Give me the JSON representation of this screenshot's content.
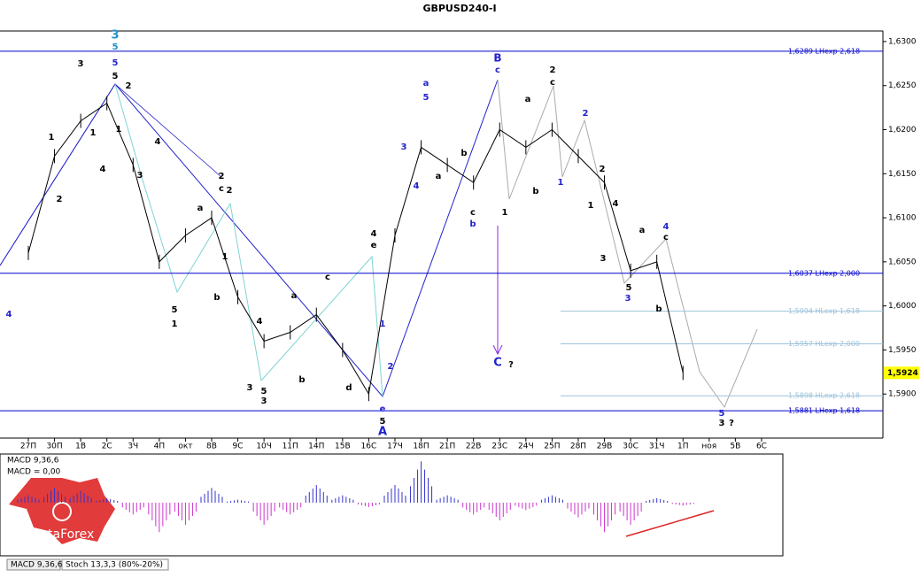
{
  "chart_data": {
    "type": "line",
    "title": "GBPUSD240-I",
    "categories": [
      "27П",
      "30П",
      "1В",
      "2С",
      "3Ч",
      "4П",
      "окт",
      "8В",
      "9С",
      "10Ч",
      "11П",
      "14П",
      "15В",
      "16С",
      "17Ч",
      "18П",
      "21П",
      "22В",
      "23С",
      "24Ч",
      "25П",
      "28П",
      "29В",
      "30С",
      "31Ч",
      "1П",
      "ноя",
      "5В",
      "6С"
    ],
    "series": [
      {
        "name": "GBPUSD",
        "color": "#000000",
        "values": [
          1.606,
          1.617,
          1.621,
          1.623,
          1.616,
          1.605,
          1.608,
          1.61,
          1.601,
          1.596,
          1.597,
          1.599,
          1.595,
          1.59,
          1.608,
          1.618,
          1.616,
          1.614,
          1.62,
          1.618,
          1.62,
          1.617,
          1.614,
          1.604,
          1.605,
          1.5924,
          null,
          null,
          null
        ]
      }
    ],
    "ylim": [
      1.585,
      1.6312
    ],
    "yticks": [
      {
        "value": 1.59,
        "label": "1,5900"
      },
      {
        "value": 1.595,
        "label": "1,5950"
      },
      {
        "value": 1.6,
        "label": "1,6000"
      },
      {
        "value": 1.605,
        "label": "1,6050"
      },
      {
        "value": 1.61,
        "label": "1,6100"
      },
      {
        "value": 1.615,
        "label": "1,6150"
      },
      {
        "value": 1.62,
        "label": "1,6200"
      },
      {
        "value": 1.625,
        "label": "1,6250"
      },
      {
        "value": 1.63,
        "label": "1,6300"
      }
    ],
    "levels": [
      {
        "value": 1.6289,
        "label": "1,6289 LHexp 2,618",
        "color": "#0000cc"
      },
      {
        "value": 1.6037,
        "label": "1,6037 LHexp 2,000",
        "color": "#0000cc"
      },
      {
        "value": 1.5994,
        "label": "1,5994 HLexp 1,618",
        "color": "#9ec3dc"
      },
      {
        "value": 1.5957,
        "label": "1,5957 HLexp 2,000",
        "color": "#9ec3dc"
      },
      {
        "value": 1.5898,
        "label": "1,5898 HLexp 2,618",
        "color": "#9ec3dc"
      },
      {
        "value": 1.5881,
        "label": "1,5881 LHexp 1,618",
        "color": "#0000cc"
      }
    ],
    "last_price": {
      "value": 1.5924,
      "label": "1,5924"
    },
    "wave_labels": [
      "3",
      "5",
      "5",
      "4",
      "B",
      "c",
      "a",
      "5",
      "3",
      "4",
      "c",
      "b",
      "1",
      "2",
      "e",
      "5",
      "A",
      "C",
      "?",
      "2",
      "1",
      "3",
      "4",
      "5",
      "3",
      "?",
      "3",
      "5",
      "2",
      "1",
      "1",
      "4",
      "1",
      "4",
      "3",
      "2",
      "5",
      "1",
      "2",
      "c",
      "2",
      "a",
      "1",
      "b",
      "3",
      "5",
      "3",
      "4",
      "a",
      "b",
      "c",
      "d",
      "4",
      "e",
      "a",
      "b",
      "1",
      "a",
      "b",
      "2",
      "c",
      "2",
      "1",
      "4",
      "3",
      "a",
      "b",
      "c",
      "5"
    ],
    "macd": {
      "title": "MACD 9,36,6",
      "readout": "MACD = 0,00",
      "values": [
        0.0005,
        0.001,
        0.0008,
        0.0003,
        -0.0008,
        -0.002,
        -0.0015,
        0.001,
        0.0002,
        -0.0015,
        -0.0008,
        0.0012,
        0.0005,
        -0.0003,
        0.0012,
        0.0028,
        0.0005,
        -0.0008,
        -0.0012,
        -0.0005,
        0.0005,
        -0.001,
        -0.002,
        -0.0015,
        0.0003,
        -0.0002,
        null,
        null,
        null
      ]
    },
    "tabs": [
      "MACD 9,36,6",
      "Stoch 13,3,3 (80%-20%)"
    ],
    "logo": "InstaForex"
  }
}
